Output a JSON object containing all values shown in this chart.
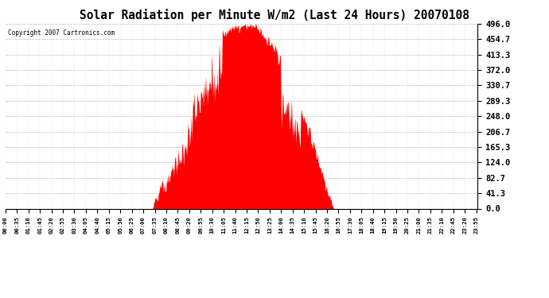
{
  "title": "Solar Radiation per Minute W/m2 (Last 24 Hours) 20070108",
  "copyright_text": "Copyright 2007 Cartronics.com",
  "y_max": 496.0,
  "y_min": 0.0,
  "y_ticks": [
    0.0,
    41.3,
    82.7,
    124.0,
    165.3,
    206.7,
    248.0,
    289.3,
    330.7,
    372.0,
    413.3,
    454.7,
    496.0
  ],
  "fill_color": "#FF0000",
  "background_color": "#FFFFFF",
  "grid_color": "#AAAAAA",
  "dashed_line_color": "#FF0000",
  "x_labels": [
    "00:00",
    "00:35",
    "01:10",
    "01:45",
    "02:20",
    "02:55",
    "03:30",
    "04:05",
    "04:40",
    "05:15",
    "05:50",
    "06:25",
    "07:00",
    "07:35",
    "08:10",
    "08:45",
    "09:20",
    "09:55",
    "10:30",
    "11:05",
    "11:40",
    "12:15",
    "12:50",
    "13:25",
    "14:00",
    "14:35",
    "15:10",
    "15:45",
    "16:20",
    "16:55",
    "17:30",
    "18:05",
    "18:40",
    "19:15",
    "19:50",
    "20:25",
    "21:00",
    "21:35",
    "22:10",
    "22:45",
    "23:20",
    "23:55"
  ],
  "num_points": 1440,
  "sunrise_hour": 7.5,
  "sunset_hour": 16.67,
  "peak_value": 496.0
}
